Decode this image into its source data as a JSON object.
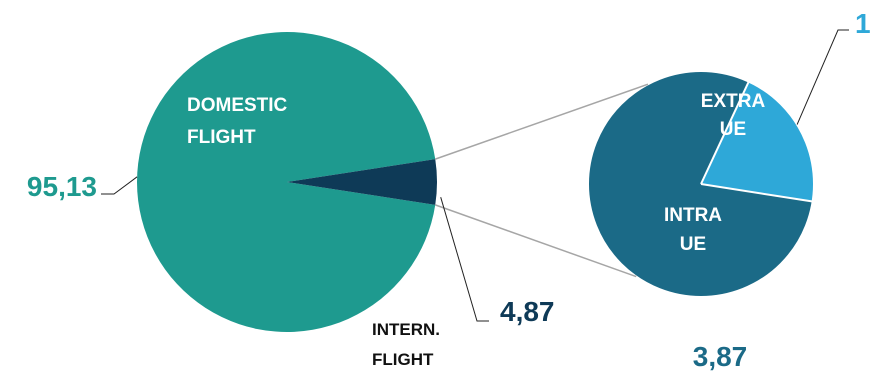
{
  "chart_data": [
    {
      "type": "pie",
      "title": "",
      "slices": [
        {
          "label": [
            "DOMESTIC",
            "FLIGHT"
          ],
          "value": 95.13,
          "value_label": "95,13",
          "color": "#1e9a8f",
          "label_color": "#ffffff",
          "value_color": "#1e9a8f"
        },
        {
          "label": [
            "INTERN.",
            "FLIGHT"
          ],
          "value": 4.87,
          "value_label": "4,87",
          "color": "#0e3a57",
          "label_color": "#111111",
          "value_color": "#0e3a57"
        }
      ]
    },
    {
      "type": "pie",
      "title": "",
      "breakdown_of": "INTERN. FLIGHT",
      "slices": [
        {
          "label": [
            "EXTRA",
            "UE"
          ],
          "value": 1,
          "value_label": "1",
          "color": "#2ea8d8",
          "label_color": "#ffffff",
          "value_color": "#2ea8d8"
        },
        {
          "label": [
            "INTRA",
            "UE"
          ],
          "value": 3.87,
          "value_label": "3,87",
          "color": "#1b6a87",
          "label_color": "#ffffff",
          "value_color": "#1b6a87"
        }
      ]
    }
  ]
}
